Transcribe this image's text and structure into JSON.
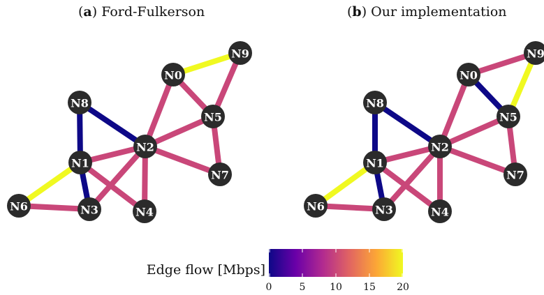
{
  "panels": [
    {
      "letter": "a",
      "title": "Ford-Fulkerson",
      "nodes": [
        "N0",
        "N1",
        "N2",
        "N3",
        "N4",
        "N5",
        "N6",
        "N7",
        "N8",
        "N9"
      ],
      "edges": [
        {
          "from": "N0",
          "to": "N9",
          "flow": 20
        },
        {
          "from": "N0",
          "to": "N5",
          "flow": 10
        },
        {
          "from": "N0",
          "to": "N2",
          "flow": 10
        },
        {
          "from": "N9",
          "to": "N5",
          "flow": 10
        },
        {
          "from": "N8",
          "to": "N1",
          "flow": 0
        },
        {
          "from": "N8",
          "to": "N2",
          "flow": 0
        },
        {
          "from": "N2",
          "to": "N5",
          "flow": 10
        },
        {
          "from": "N2",
          "to": "N7",
          "flow": 10
        },
        {
          "from": "N5",
          "to": "N7",
          "flow": 10
        },
        {
          "from": "N1",
          "to": "N2",
          "flow": 10
        },
        {
          "from": "N1",
          "to": "N3",
          "flow": 0
        },
        {
          "from": "N1",
          "to": "N4",
          "flow": 10
        },
        {
          "from": "N1",
          "to": "N6",
          "flow": 20
        },
        {
          "from": "N2",
          "to": "N3",
          "flow": 10
        },
        {
          "from": "N2",
          "to": "N4",
          "flow": 10
        },
        {
          "from": "N6",
          "to": "N3",
          "flow": 10
        }
      ]
    },
    {
      "letter": "b",
      "title": "Our implementation",
      "nodes": [
        "N0",
        "N1",
        "N2",
        "N3",
        "N4",
        "N5",
        "N6",
        "N7",
        "N8",
        "N9"
      ],
      "edges": [
        {
          "from": "N0",
          "to": "N9",
          "flow": 10
        },
        {
          "from": "N0",
          "to": "N5",
          "flow": 0
        },
        {
          "from": "N0",
          "to": "N2",
          "flow": 10
        },
        {
          "from": "N9",
          "to": "N5",
          "flow": 20
        },
        {
          "from": "N8",
          "to": "N1",
          "flow": 0
        },
        {
          "from": "N8",
          "to": "N2",
          "flow": 0
        },
        {
          "from": "N2",
          "to": "N5",
          "flow": 10
        },
        {
          "from": "N2",
          "to": "N7",
          "flow": 10
        },
        {
          "from": "N5",
          "to": "N7",
          "flow": 10
        },
        {
          "from": "N1",
          "to": "N2",
          "flow": 10
        },
        {
          "from": "N1",
          "to": "N3",
          "flow": 0
        },
        {
          "from": "N1",
          "to": "N4",
          "flow": 10
        },
        {
          "from": "N1",
          "to": "N6",
          "flow": 20
        },
        {
          "from": "N2",
          "to": "N3",
          "flow": 10
        },
        {
          "from": "N2",
          "to": "N4",
          "flow": 10
        },
        {
          "from": "N6",
          "to": "N3",
          "flow": 10
        }
      ]
    }
  ],
  "colorbar": {
    "label": "Edge flow [Mbps]",
    "min": 0,
    "max": 20,
    "ticks": [
      "0",
      "5",
      "10",
      "15",
      "20"
    ],
    "colormap": [
      "#0d0887",
      "#6a00a8",
      "#b12a90",
      "#e16462",
      "#fca636",
      "#f0f921"
    ]
  },
  "colors": {
    "node": "#2b2b2b",
    "node_text": "#ffffff"
  }
}
